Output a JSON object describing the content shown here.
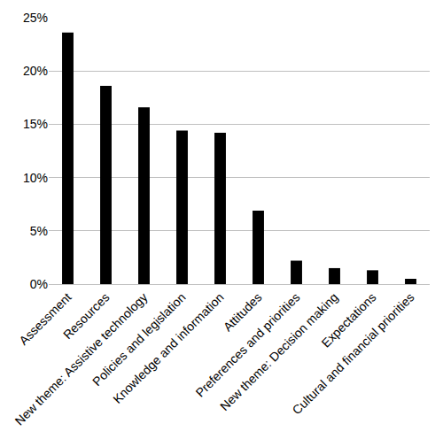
{
  "chart_data": {
    "type": "bar",
    "categories": [
      "Assessment",
      "Resources",
      "New theme: Assistive technology",
      "Policies and legislation",
      "Knowledge and information",
      "Attitudes",
      "Preferences and priorities",
      "New theme: Decision making",
      "Expectations",
      "Cultural and financial priorities"
    ],
    "values": [
      23.6,
      18.6,
      16.6,
      14.4,
      14.2,
      6.9,
      2.2,
      1.5,
      1.3,
      0.5
    ],
    "color": "#000000",
    "ylim": [
      0,
      25
    ],
    "yticks": [
      {
        "value": 0,
        "label": "0%"
      },
      {
        "value": 5,
        "label": "5%"
      },
      {
        "value": 10,
        "label": "10%"
      },
      {
        "value": 15,
        "label": "15%"
      },
      {
        "value": 20,
        "label": "20%"
      },
      {
        "value": 25,
        "label": "25%"
      }
    ],
    "grid": true
  }
}
